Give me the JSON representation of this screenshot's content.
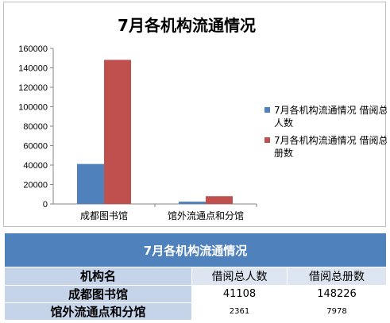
{
  "chart_data": {
    "type": "bar",
    "title": "7月各机构流通情况",
    "categories": [
      "成都图书馆",
      "馆外流通点和分馆"
    ],
    "series": [
      {
        "name": "7月各机构流通情况 借阅总人数",
        "values": [
          41108,
          2361
        ],
        "color": "#4f81bd"
      },
      {
        "name": "7月各机构流通情况 借阅总册数",
        "values": [
          148226,
          7978
        ],
        "color": "#c0504d"
      }
    ],
    "ylim": [
      0,
      160000
    ],
    "yticks": [
      0,
      20000,
      40000,
      60000,
      80000,
      100000,
      120000,
      140000,
      160000
    ],
    "legend_position": "right",
    "grid": false
  },
  "table": {
    "title": "7月各机构流通情况",
    "headers": [
      "机构名",
      "借阅总人数",
      "借阅总册数"
    ],
    "rows": [
      {
        "name": "成都图书馆",
        "readers": "41108",
        "books": "148226"
      },
      {
        "name": "馆外流通点和分馆",
        "readers": "2361",
        "books": "7978"
      }
    ]
  },
  "colors": {
    "accent": "#4f81bd",
    "secondary": "#c0504d",
    "header_fill": "#c6d4ea"
  }
}
